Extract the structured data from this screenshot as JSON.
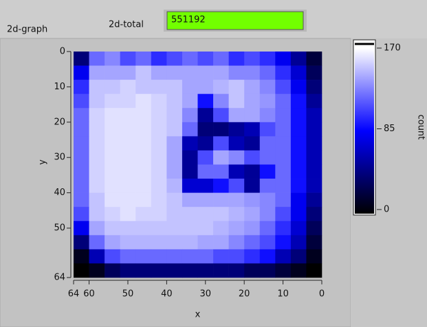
{
  "header": {
    "graph_label": "2d-graph",
    "total_label": "2d-total",
    "total_value": 551192
  },
  "chart_data": {
    "type": "heatmap",
    "x_label": "x",
    "y_label": "y",
    "colorbar_label": "count",
    "xlim": [
      64,
      0
    ],
    "xticks": [
      64,
      60,
      50,
      40,
      30,
      20,
      10,
      0
    ],
    "ylim": [
      0,
      64
    ],
    "yticks": [
      0,
      10,
      20,
      30,
      40,
      50,
      64
    ],
    "zlim": [
      0,
      170
    ],
    "zticks": [
      0,
      85,
      170
    ],
    "colormap": [
      "#000000",
      "#0000ff",
      "#ffffff"
    ],
    "z": [
      [
        40,
        120,
        130,
        110,
        120,
        100,
        110,
        120,
        110,
        120,
        100,
        110,
        100,
        80,
        50,
        20
      ],
      [
        80,
        140,
        140,
        140,
        150,
        140,
        140,
        140,
        140,
        140,
        130,
        130,
        120,
        100,
        70,
        30
      ],
      [
        100,
        150,
        150,
        155,
        150,
        150,
        150,
        140,
        140,
        145,
        150,
        140,
        130,
        110,
        80,
        40
      ],
      [
        110,
        150,
        155,
        155,
        160,
        155,
        150,
        140,
        90,
        130,
        150,
        140,
        135,
        120,
        90,
        50
      ],
      [
        120,
        155,
        160,
        160,
        160,
        155,
        150,
        130,
        50,
        110,
        140,
        140,
        130,
        120,
        90,
        60
      ],
      [
        120,
        155,
        160,
        160,
        160,
        155,
        150,
        120,
        40,
        40,
        50,
        60,
        110,
        120,
        90,
        60
      ],
      [
        120,
        155,
        160,
        160,
        160,
        155,
        140,
        60,
        50,
        110,
        60,
        50,
        120,
        120,
        90,
        60
      ],
      [
        120,
        155,
        160,
        160,
        160,
        155,
        140,
        50,
        110,
        140,
        130,
        110,
        120,
        120,
        90,
        60
      ],
      [
        120,
        155,
        160,
        160,
        160,
        155,
        140,
        50,
        120,
        120,
        60,
        50,
        90,
        120,
        90,
        60
      ],
      [
        120,
        155,
        160,
        160,
        160,
        155,
        145,
        70,
        70,
        90,
        110,
        50,
        120,
        120,
        90,
        60
      ],
      [
        120,
        150,
        160,
        160,
        160,
        155,
        150,
        140,
        140,
        140,
        140,
        135,
        130,
        120,
        80,
        50
      ],
      [
        110,
        150,
        155,
        160,
        155,
        155,
        150,
        150,
        150,
        150,
        145,
        140,
        130,
        110,
        80,
        40
      ],
      [
        80,
        140,
        150,
        150,
        150,
        150,
        150,
        150,
        150,
        145,
        140,
        135,
        120,
        100,
        70,
        30
      ],
      [
        40,
        120,
        140,
        145,
        145,
        145,
        145,
        145,
        140,
        140,
        130,
        120,
        110,
        90,
        60,
        20
      ],
      [
        10,
        60,
        110,
        120,
        120,
        120,
        120,
        120,
        120,
        110,
        110,
        100,
        90,
        60,
        40,
        10
      ],
      [
        0,
        10,
        30,
        40,
        40,
        40,
        40,
        40,
        40,
        40,
        40,
        30,
        30,
        20,
        10,
        0
      ]
    ]
  }
}
